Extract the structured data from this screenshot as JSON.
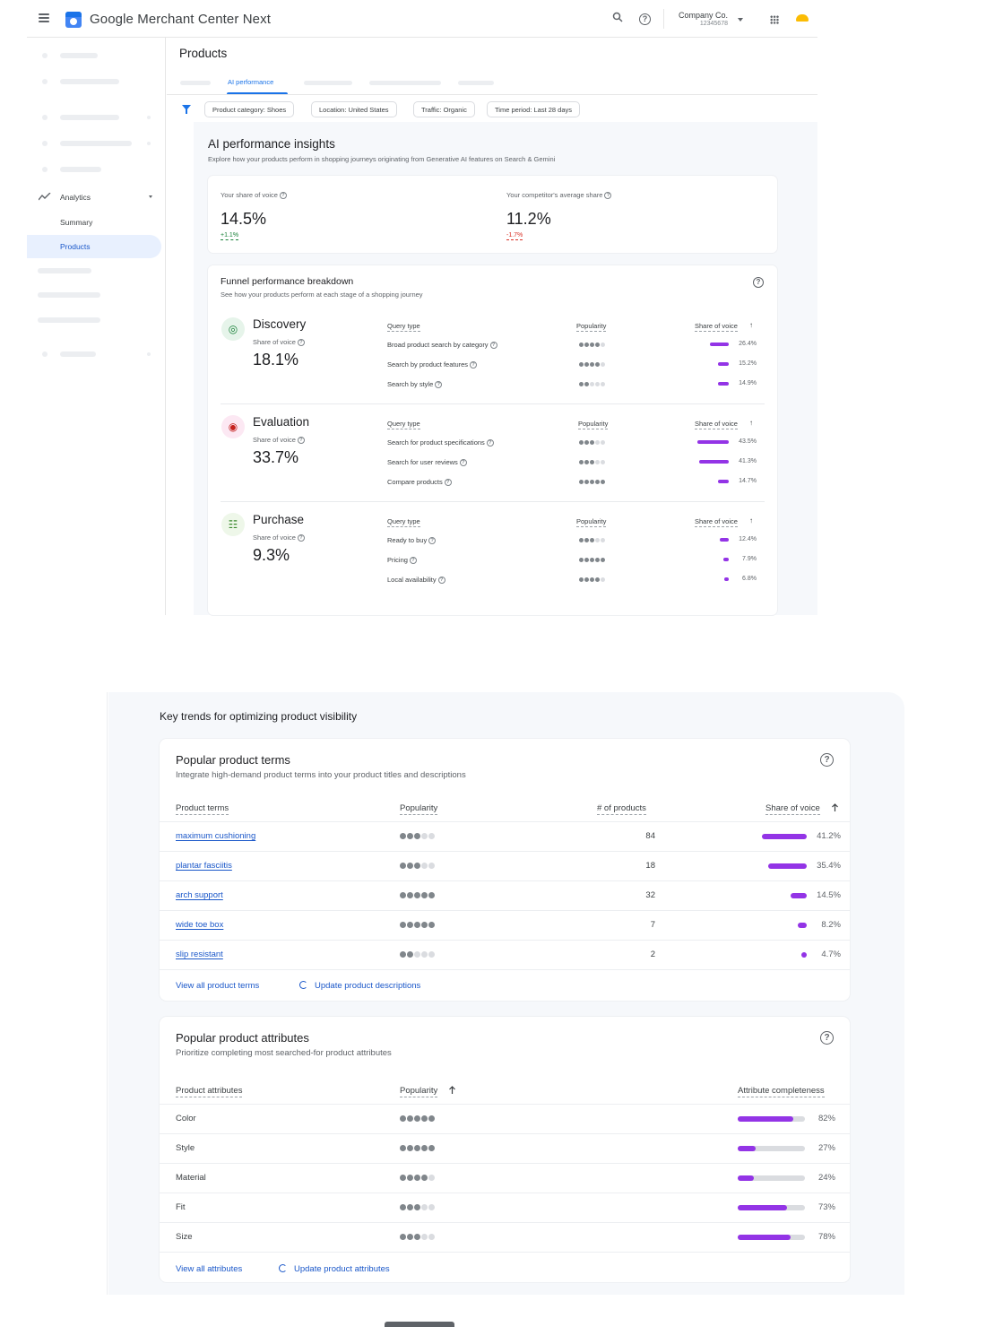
{
  "app": {
    "title": "Google Merchant Center Next",
    "account_name": "Company Co.",
    "account_id": "12345678"
  },
  "sidebar": {
    "analytics_label": "Analytics",
    "summary_label": "Summary",
    "products_label": "Products"
  },
  "page": {
    "title": "Products",
    "active_tab": "AI performance"
  },
  "filters": [
    "Product category: Shoes",
    "Location: United States",
    "Traffic: Organic",
    "Time period: Last 28 days"
  ],
  "insights": {
    "title": "AI performance insights",
    "subtitle": "Explore how your products perform in shopping journeys originating from Generative AI features on Search & Gemini",
    "your_share_label": "Your share of voice",
    "your_share_value": "14.5%",
    "your_share_delta": "+1.1%",
    "competitor_label": "Your competitor's average share",
    "competitor_value": "11.2%",
    "competitor_delta": "-1.7%"
  },
  "funnel": {
    "title": "Funnel performance breakdown",
    "subtitle": "See how your products perform at each stage of a shopping journey",
    "col_query": "Query type",
    "col_popularity": "Popularity",
    "col_sov": "Share of voice",
    "sov_label": "Share of voice",
    "stages": [
      {
        "name": "Discovery",
        "sov": "18.1%",
        "rows": [
          {
            "query": "Broad product search by category",
            "popularity": 4,
            "share": 26.4,
            "share_label": "26.4%"
          },
          {
            "query": "Search by product features",
            "popularity": 4,
            "share": 15.2,
            "share_label": "15.2%"
          },
          {
            "query": "Search by style",
            "popularity": 2,
            "share": 14.9,
            "share_label": "14.9%"
          }
        ]
      },
      {
        "name": "Evaluation",
        "sov": "33.7%",
        "rows": [
          {
            "query": "Search for product specifications",
            "popularity": 3,
            "share": 43.5,
            "share_label": "43.5%"
          },
          {
            "query": "Search for user reviews",
            "popularity": 3,
            "share": 41.3,
            "share_label": "41.3%"
          },
          {
            "query": "Compare products",
            "popularity": 5,
            "share": 14.7,
            "share_label": "14.7%"
          }
        ]
      },
      {
        "name": "Purchase",
        "sov": "9.3%",
        "rows": [
          {
            "query": "Ready to buy",
            "popularity": 3,
            "share": 12.4,
            "share_label": "12.4%"
          },
          {
            "query": "Pricing",
            "popularity": 5,
            "share": 7.9,
            "share_label": "7.9%"
          },
          {
            "query": "Local availability",
            "popularity": 4,
            "share": 6.8,
            "share_label": "6.8%"
          }
        ]
      }
    ]
  },
  "trends": {
    "title": "Key trends for optimizing product visibility",
    "terms": {
      "title": "Popular product terms",
      "subtitle": "Integrate high-demand product terms into your product titles and descriptions",
      "col_terms": "Product terms",
      "col_popularity": "Popularity",
      "col_products": "# of products",
      "col_sov": "Share of voice",
      "rows": [
        {
          "term": "maximum cushioning",
          "popularity": 3,
          "products": "84",
          "share": 41.2,
          "share_label": "41.2%"
        },
        {
          "term": "plantar fasciitis",
          "popularity": 3,
          "products": "18",
          "share": 35.4,
          "share_label": "35.4%"
        },
        {
          "term": "arch support",
          "popularity": 5,
          "products": "32",
          "share": 14.5,
          "share_label": "14.5%"
        },
        {
          "term": "wide toe box",
          "popularity": 5,
          "products": "7",
          "share": 8.2,
          "share_label": "8.2%"
        },
        {
          "term": "slip resistant",
          "popularity": 2,
          "products": "2",
          "share": 4.7,
          "share_label": "4.7%"
        }
      ],
      "view_all": "View all product terms",
      "update": "Update product descriptions"
    },
    "attributes": {
      "title": "Popular product attributes",
      "subtitle": "Prioritize completing most searched-for product attributes",
      "col_attr": "Product attributes",
      "col_popularity": "Popularity",
      "col_completeness": "Attribute completeness",
      "rows": [
        {
          "attr": "Color",
          "popularity": 5,
          "completeness": 82,
          "completeness_label": "82%"
        },
        {
          "attr": "Style",
          "popularity": 5,
          "completeness": 27,
          "completeness_label": "27%"
        },
        {
          "attr": "Material",
          "popularity": 4,
          "completeness": 24,
          "completeness_label": "24%"
        },
        {
          "attr": "Fit",
          "popularity": 3,
          "completeness": 73,
          "completeness_label": "73%"
        },
        {
          "attr": "Size",
          "popularity": 3,
          "completeness": 78,
          "completeness_label": "78%"
        }
      ],
      "view_all": "View all attributes",
      "update": "Update product attributes"
    }
  },
  "colors": {
    "accent": "#1a73e8",
    "bar": "#9334e6",
    "positive": "#188038",
    "negative": "#d93025",
    "dot_on": "#80868b",
    "dot_off": "#dadce0"
  },
  "icons": {
    "menu": "menu-icon",
    "search": "search-icon",
    "help": "help-icon",
    "apps": "apps-grid-icon",
    "discovery": "lightbulb-icon",
    "evaluation": "palette-icon",
    "purchase": "cart-icon",
    "refresh": "refresh-icon",
    "sort": "arrow-up-icon"
  }
}
